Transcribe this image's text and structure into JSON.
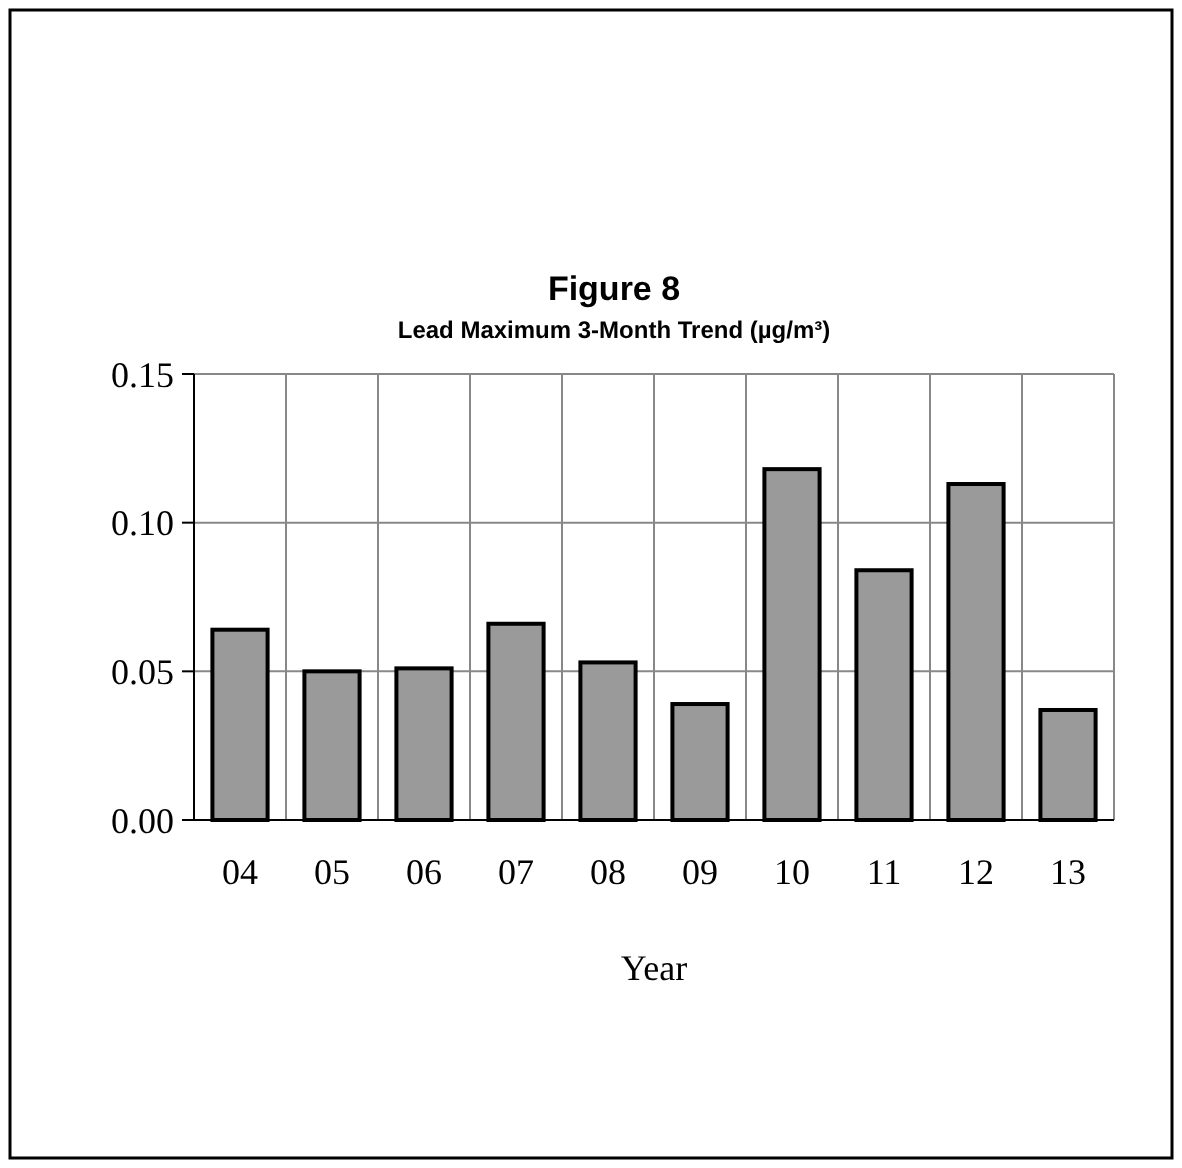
{
  "chart_data": {
    "type": "bar",
    "title": "Figure 8",
    "subtitle": "Lead Maximum 3-Month Trend (µg/m³)",
    "xlabel": "Year",
    "categories": [
      "04",
      "05",
      "06",
      "07",
      "08",
      "09",
      "10",
      "11",
      "12",
      "13"
    ],
    "values": [
      0.064,
      0.05,
      0.051,
      0.066,
      0.053,
      0.039,
      0.118,
      0.084,
      0.113,
      0.037
    ],
    "color": "#9a9a9a",
    "ylim": [
      0,
      0.15
    ],
    "yticks": [
      {
        "value": 0,
        "label": "0.00"
      },
      {
        "value": 0.05,
        "label": "0.05"
      },
      {
        "value": 0.1,
        "label": "0.10"
      },
      {
        "value": 0.15,
        "label": "0.15"
      }
    ],
    "grid": true
  }
}
